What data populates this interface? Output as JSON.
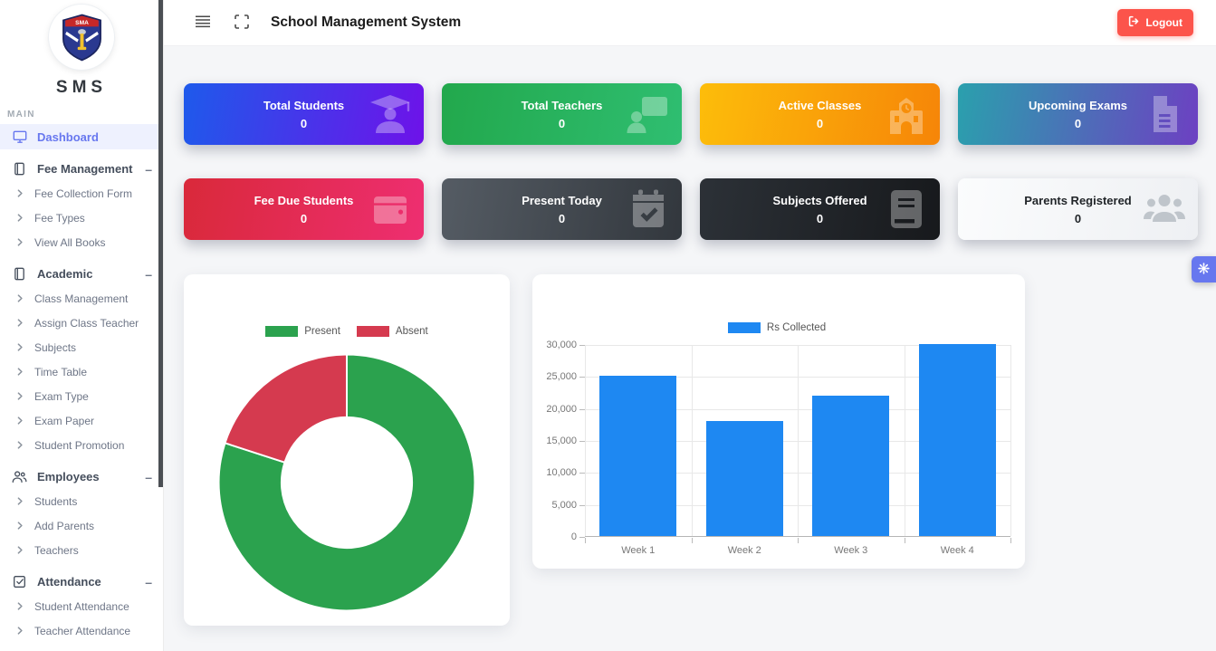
{
  "header": {
    "title": "School Management System",
    "logout_label": "Logout"
  },
  "sidebar": {
    "brand": "SMS",
    "section_label": "MAIN",
    "menu": [
      {
        "type": "item",
        "label": "Dashboard",
        "icon": "monitor-icon",
        "active": true
      },
      {
        "type": "section",
        "label": "Fee Management",
        "icon": "journal-icon"
      },
      {
        "type": "subitem",
        "label": "Fee Collection Form"
      },
      {
        "type": "subitem",
        "label": "Fee Types"
      },
      {
        "type": "subitem",
        "label": "View All Books"
      },
      {
        "type": "section",
        "label": "Academic",
        "icon": "journal-icon"
      },
      {
        "type": "subitem",
        "label": "Class Management"
      },
      {
        "type": "subitem",
        "label": "Assign Class Teacher"
      },
      {
        "type": "subitem",
        "label": "Subjects"
      },
      {
        "type": "subitem",
        "label": "Time Table"
      },
      {
        "type": "subitem",
        "label": "Exam Type"
      },
      {
        "type": "subitem",
        "label": "Exam Paper"
      },
      {
        "type": "subitem",
        "label": "Student Promotion"
      },
      {
        "type": "section",
        "label": "Employees",
        "icon": "people-icon"
      },
      {
        "type": "subitem",
        "label": "Students"
      },
      {
        "type": "subitem",
        "label": "Add Parents"
      },
      {
        "type": "subitem",
        "label": "Teachers"
      },
      {
        "type": "section",
        "label": "Attendance",
        "icon": "check-square-icon"
      },
      {
        "type": "subitem",
        "label": "Student Attendance"
      },
      {
        "type": "subitem",
        "label": "Teacher Attendance"
      }
    ]
  },
  "stats": [
    {
      "label": "Total Students",
      "value": "0",
      "icon": "graduate-icon",
      "gradient": [
        "#1e5aeb",
        "#6e12e9"
      ],
      "text": "#ffffff"
    },
    {
      "label": "Total Teachers",
      "value": "0",
      "icon": "teacher-board-icon",
      "gradient": [
        "#22a84c",
        "#2fbe71"
      ],
      "text": "#ffffff"
    },
    {
      "label": "Active Classes",
      "value": "0",
      "icon": "school-icon",
      "gradient": [
        "#fdbd0a",
        "#f68508"
      ],
      "text": "#ffffff"
    },
    {
      "label": "Upcoming Exams",
      "value": "0",
      "icon": "document-icon",
      "gradient": [
        "#2aa0ad",
        "#6d40c2"
      ],
      "text": "#ffffff"
    },
    {
      "label": "Fee Due Students",
      "value": "0",
      "icon": "wallet-icon",
      "gradient": [
        "#d9293a",
        "#ee2e71"
      ],
      "text": "#ffffff"
    },
    {
      "label": "Present Today",
      "value": "0",
      "icon": "calendar-check-icon",
      "gradient": [
        "#555c64",
        "#32373d"
      ],
      "text": "#ffffff"
    },
    {
      "label": "Subjects Offered",
      "value": "0",
      "icon": "book-icon",
      "gradient": [
        "#2c3137",
        "#17191c"
      ],
      "text": "#ffffff"
    },
    {
      "label": "Parents Registered",
      "value": "0",
      "icon": "people-group-icon",
      "gradient": [
        "#fbfcfd",
        "#eef0f3"
      ],
      "text": "#212529",
      "icon_color": "#bfc5cb"
    }
  ],
  "chart_data": [
    {
      "type": "pie",
      "subtype": "doughnut",
      "labels": [
        "Present",
        "Absent"
      ],
      "values": [
        80,
        20
      ],
      "colors": [
        "#2ba24e",
        "#d53a4f"
      ],
      "legend_position": "top",
      "hole_ratio": 0.51
    },
    {
      "type": "bar",
      "categories": [
        "Week 1",
        "Week 2",
        "Week 3",
        "Week 4"
      ],
      "series": [
        {
          "name": "Rs Collected",
          "color": "#1e88f2",
          "values": [
            25000,
            18000,
            22000,
            30000
          ]
        }
      ],
      "ylim": [
        0,
        30000
      ],
      "ytick_step": 5000,
      "ytick_labels": [
        "0",
        "5,000",
        "10,000",
        "15,000",
        "20,000",
        "25,000",
        "30,000"
      ],
      "grid": true,
      "legend_position": "top"
    }
  ],
  "colors": {
    "logout_button": "#fc544b",
    "settings_button": "#6777ef",
    "sidebar_active": "#6777ef"
  }
}
